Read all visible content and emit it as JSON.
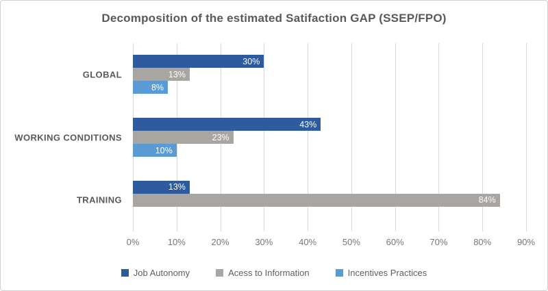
{
  "chart_data": {
    "type": "bar",
    "orientation": "horizontal",
    "title": "Decomposition of the estimated Satifaction GAP (SSEP/FPO)",
    "categories": [
      "GLOBAL",
      "WORKING CONDITIONS",
      "TRAINING"
    ],
    "series": [
      {
        "name": "Job Autonomy",
        "color": "#2E5B9D",
        "values": [
          30,
          43,
          13
        ]
      },
      {
        "name": "Acess to Information",
        "color": "#A9A6A2",
        "values": [
          13,
          23,
          84
        ]
      },
      {
        "name": "Incentives Practices",
        "color": "#5B9BD5",
        "values": [
          8,
          10,
          0
        ]
      }
    ],
    "x_tick_labels": [
      "0%",
      "10%",
      "20%",
      "30%",
      "40%",
      "50%",
      "60%",
      "70%",
      "80%",
      "90%"
    ],
    "xlim": [
      0,
      90
    ],
    "data_label_suffix": "%",
    "grid": "vertical",
    "legend_position": "bottom",
    "colors": {
      "gridline": "#D9D9D9",
      "title_text": "#595959",
      "category_text": "#595959",
      "tick_text": "#767676",
      "bar_label_text": "#FFFFFF",
      "frame_border": "#D2D2D2",
      "background": "#FFFFFF"
    }
  }
}
